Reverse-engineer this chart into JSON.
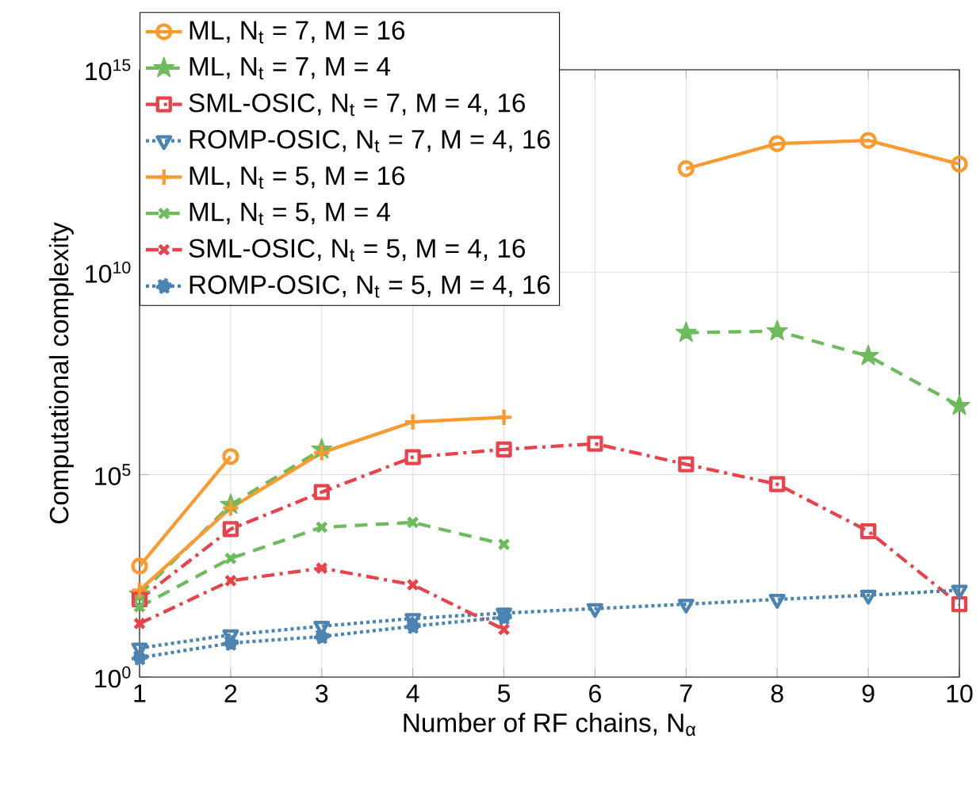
{
  "chart_data": {
    "type": "line",
    "xlabel": "Number of RF chains, N$_{α}$",
    "ylabel": "Computational complexity",
    "x": [
      1,
      2,
      3,
      4,
      5,
      6,
      7,
      8,
      9,
      10
    ],
    "xlim": [
      1,
      10
    ],
    "xticks": [
      1,
      2,
      3,
      4,
      5,
      6,
      7,
      8,
      9,
      10
    ],
    "ylim": [
      1,
      1000000000000000.0
    ],
    "log": "y",
    "yticks": [
      {
        "value": 1,
        "label": "10$^{0}$"
      },
      {
        "value": 100000,
        "label": "10$^{5}$"
      },
      {
        "value": 10000000000,
        "label": "10$^{10}$"
      },
      {
        "value": 1000000000000000.0,
        "label": "10$^{15}$"
      }
    ],
    "grid": true,
    "legend": "top left",
    "series": [
      {
        "name": "ML, N$_{t}$ = 7, M = 16",
        "color": "#fb9a2f",
        "marker": "circle",
        "line_style": "solid",
        "values": [
          550,
          280000,
          null,
          null,
          null,
          null,
          3600000000000.0,
          15000000000000.0,
          18000000000000.0,
          4700000000000.0
        ]
      },
      {
        "name": "ML, N$_{t}$ = 7, M = 4",
        "color": "#6dbb5c",
        "marker": "star",
        "line_style": "dashed",
        "values": [
          110,
          18000,
          420000,
          null,
          null,
          null,
          320000000,
          350000000,
          85000000,
          5000000
        ]
      },
      {
        "name": "SML-OSIC, N$_{t}$ = 7, M = 4, 16",
        "color": "#e8434b",
        "marker": "square",
        "line_style": "dashdot",
        "values": [
          83,
          4500,
          37000,
          270000,
          420000,
          580000,
          180000,
          58000,
          4000,
          63
        ]
      },
      {
        "name": "ROMP-OSIC, N$_{t}$ = 7, M = 4, 16",
        "color": "#4b83b3",
        "marker": "triangle-down",
        "line_style": "dotted",
        "values": [
          5.2,
          11,
          18,
          28,
          38,
          49,
          63,
          83,
          105,
          140
        ]
      },
      {
        "name": "ML, N$_{t}$ = 5, M = 16",
        "color": "#fb9a2f",
        "marker": "plus",
        "line_style": "solid",
        "x": [
          1,
          2,
          3,
          4,
          5
        ],
        "values": [
          140,
          15000,
          350000,
          2000000,
          2600000
        ]
      },
      {
        "name": "ML, N$_{t}$ = 5, M = 4",
        "color": "#6dbb5c",
        "marker": "cross",
        "line_style": "dashed",
        "x": [
          1,
          2,
          3,
          4,
          5
        ],
        "values": [
          54,
          850,
          5000,
          6600,
          1900
        ]
      },
      {
        "name": "SML-OSIC, N$_{t}$ = 5, M = 4, 16",
        "color": "#e8434b",
        "marker": "cross",
        "line_style": "dashdot",
        "x": [
          1,
          2,
          3,
          4,
          5
        ],
        "values": [
          21,
          240,
          490,
          190,
          15
        ]
      },
      {
        "name": "ROMP-OSIC, N$_{t}$ = 5, M = 4, 16",
        "color": "#4b83b3",
        "marker": "dot",
        "line_style": "dotted",
        "x": [
          1,
          2,
          3,
          4,
          5
        ],
        "values": [
          3.0,
          6.9,
          10,
          18,
          30
        ]
      }
    ]
  }
}
